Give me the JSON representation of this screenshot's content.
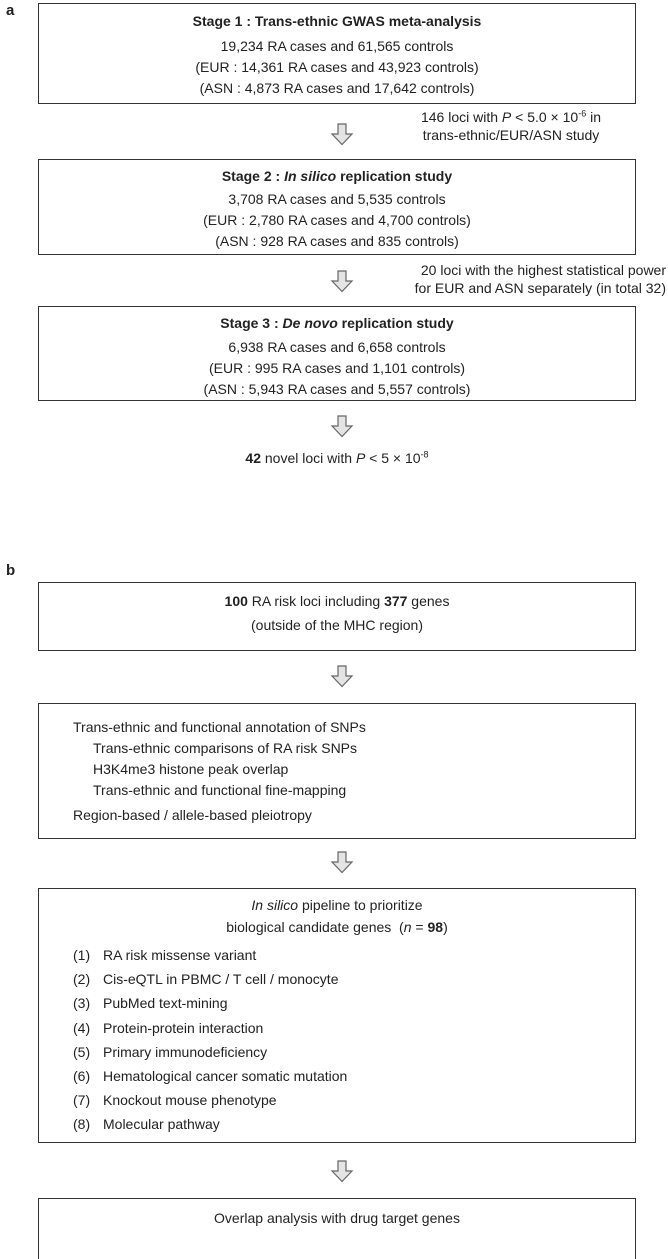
{
  "panel_a": {
    "label": "a",
    "stage1": {
      "title": "Stage 1 : Trans-ethnic GWAS meta-analysis",
      "lines": [
        "19,234 RA cases and 61,565 controls",
        "(EUR : 14,361 RA cases and 43,923 controls)",
        "(ASN : 4,873 RA cases and 17,642 controls)"
      ]
    },
    "note1": {
      "t1": "146 loci with ",
      "p": "P",
      "t2": " < 5.0 × 10",
      "exp": "-6",
      "t3": " in",
      "line2": "trans-ethnic/EUR/ASN study"
    },
    "stage2": {
      "prefix": "Stage 2 : ",
      "italic": "In silico",
      "suffix": " replication study",
      "lines": [
        "3,708 RA cases and 5,535 controls",
        "(EUR : 2,780 RA cases and 4,700 controls)",
        "(ASN : 928 RA cases and 835 controls)"
      ]
    },
    "note2": {
      "line1": "20 loci with the highest statistical power",
      "line2": "for EUR and ASN separately (in total 32)"
    },
    "stage3": {
      "prefix": "Stage 3 : ",
      "italic": "De novo",
      "suffix": " replication study",
      "lines": [
        "6,938 RA cases and 6,658 controls",
        "(EUR : 995 RA cases and 1,101 controls)",
        "(ASN : 5,943 RA cases and 5,557 controls)"
      ]
    },
    "result": {
      "count": "42",
      "t1": " novel loci with ",
      "p": "P",
      "t2": " < 5 × 10",
      "exp": "-8"
    }
  },
  "panel_b": {
    "label": "b",
    "box1": {
      "n1": "100",
      "t1": " RA risk loci including ",
      "n2": "377",
      "t2": " genes",
      "line2": "(outside of the MHC region)"
    },
    "box2": {
      "heading": "Trans-ethnic and functional annotation of SNPs",
      "subitems": [
        "Trans-ethnic comparisons of RA risk SNPs",
        "H3K4me3 histone peak overlap",
        "Trans-ethnic and functional fine-mapping"
      ],
      "footer": "Region-based / allele-based pleiotropy"
    },
    "box3": {
      "italic": "In silico",
      "rest": " pipeline to prioritize",
      "t1": "biological candidate genes  (",
      "n": "n",
      "t2": " = ",
      "v": "98",
      "t3": ")",
      "items": [
        {
          "num": "(1)",
          "text": "RA risk missense variant"
        },
        {
          "num": "(2)",
          "text": "Cis-eQTL in PBMC / T cell / monocyte"
        },
        {
          "num": "(3)",
          "text": "PubMed text-mining"
        },
        {
          "num": "(4)",
          "text": "Protein-protein interaction"
        },
        {
          "num": "(5)",
          "text": "Primary immunodeficiency"
        },
        {
          "num": "(6)",
          "text": "Hematological cancer somatic mutation"
        },
        {
          "num": "(7)",
          "text": "Knockout mouse phenotype"
        },
        {
          "num": "(8)",
          "text": "Molecular pathway"
        }
      ]
    },
    "box4": {
      "text": "Overlap analysis with drug target genes"
    }
  }
}
